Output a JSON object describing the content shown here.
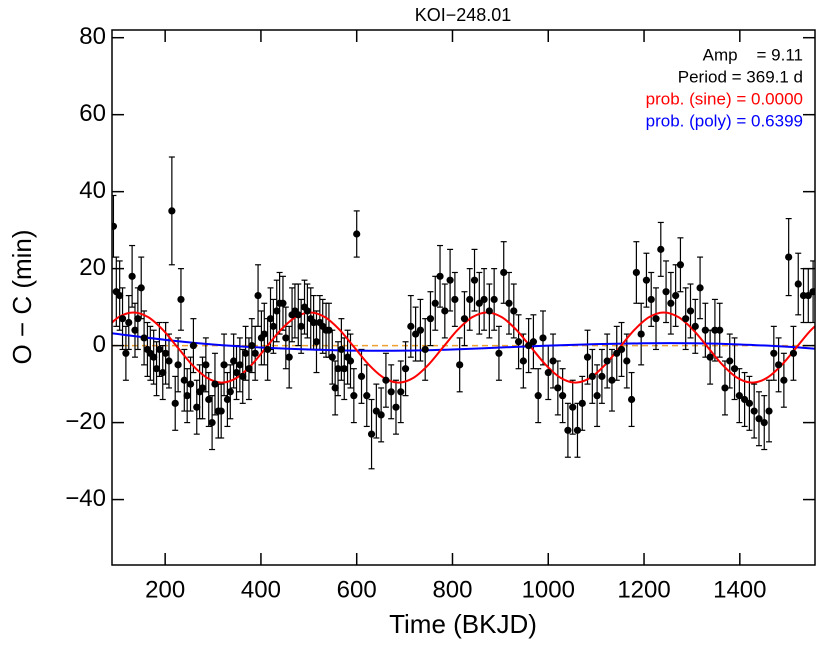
{
  "chart_data": {
    "type": "scatter",
    "title": "KOI−248.01",
    "x_label": "Time (BKJD)",
    "y_label": "O − C (min)",
    "xlim": [
      89,
      1557
    ],
    "ylim": [
      -57,
      82
    ],
    "xticks": [
      200,
      400,
      600,
      800,
      1000,
      1200,
      1400
    ],
    "yticks": [
      {
        "value": -40,
        "label": "−40"
      },
      {
        "value": -20,
        "label": "−20"
      },
      0,
      20,
      40,
      60,
      80
    ],
    "annotations": [
      {
        "text": "Amp    = 9.11",
        "color": "#000000"
      },
      {
        "text": "Period = 369.1 d",
        "color": "#000000"
      },
      {
        "text": "prob. (sine) = 0.0000",
        "color": "#ff0000"
      },
      {
        "text": "prob. (poly) = 0.6399",
        "color": "#0000ff"
      }
    ],
    "reference_line": {
      "value": 0,
      "color": "#f0a030",
      "dashed": true
    },
    "curves": [
      {
        "color": "#0000ff",
        "x": [
          89,
          200,
          300,
          400,
          500,
          600,
          700,
          800,
          900,
          1000,
          1100,
          1200,
          1300,
          1400,
          1500,
          1557
        ],
        "values": [
          3.2,
          1.5,
          0.3,
          -0.5,
          -1.0,
          -1.3,
          -1.3,
          -1.0,
          -0.5,
          0,
          0.4,
          0.6,
          0.6,
          0.3,
          -0.3,
          -0.8
        ]
      },
      {
        "color": "#ff0000",
        "x": [
          72.4,
          103.1,
          133.9,
          164.6,
          195.4,
          226.2,
          256.9,
          287.7,
          318.4,
          349.2,
          380.0,
          410.7,
          441.5,
          472.2,
          503.0,
          533.8,
          564.5,
          595.3,
          626.0,
          656.8,
          687.6,
          718.3,
          749.1,
          779.8,
          810.6,
          841.4,
          872.1,
          902.9,
          933.6,
          964.4,
          995.2,
          1025.9,
          1056.7,
          1087.4,
          1118.2,
          1149.0,
          1179.7,
          1210.5,
          1241.2,
          1272.0,
          1302.8,
          1333.5,
          1364.3,
          1395.0,
          1425.8,
          1456.6,
          1487.3,
          1518.1,
          1548.8,
          1579.6
        ],
        "values": [
          4.06,
          7.39,
          8.61,
          7.39,
          4.06,
          -0.5,
          -5.06,
          -8.39,
          -9.61,
          -8.39,
          -5.06,
          -0.5,
          4.06,
          7.39,
          8.61,
          7.39,
          4.06,
          -0.5,
          -5.06,
          -8.39,
          -9.61,
          -8.39,
          -5.06,
          -0.5,
          4.06,
          7.39,
          8.61,
          7.39,
          4.06,
          -0.5,
          -5.06,
          -8.39,
          -9.61,
          -8.39,
          -5.06,
          -0.5,
          4.06,
          7.39,
          8.61,
          7.39,
          4.06,
          -0.5,
          -5.06,
          -8.39,
          -9.61,
          -8.39,
          -5.06,
          -0.5,
          4.06,
          7.39
        ]
      }
    ],
    "points": {
      "color": "#000000",
      "x": [
        92,
        98,
        105,
        111,
        118,
        124,
        131,
        137,
        143,
        150,
        156,
        163,
        169,
        176,
        182,
        188,
        195,
        201,
        208,
        214,
        221,
        227,
        233,
        240,
        246,
        253,
        259,
        266,
        272,
        278,
        285,
        291,
        298,
        304,
        311,
        317,
        323,
        330,
        336,
        343,
        349,
        356,
        362,
        368,
        375,
        381,
        388,
        394,
        401,
        407,
        414,
        420,
        426,
        433,
        439,
        446,
        452,
        459,
        465,
        471,
        478,
        484,
        491,
        497,
        504,
        510,
        516,
        523,
        529,
        536,
        542,
        549,
        555,
        561,
        568,
        574,
        581,
        587,
        594,
        600,
        610,
        621,
        631,
        641,
        651,
        661,
        672,
        682,
        692,
        702,
        713,
        723,
        733,
        743,
        754,
        764,
        774,
        784,
        795,
        805,
        815,
        825,
        836,
        846,
        856,
        866,
        877,
        887,
        897,
        907,
        918,
        928,
        938,
        948,
        959,
        969,
        979,
        989,
        1000,
        1010,
        1020,
        1030,
        1041,
        1051,
        1061,
        1071,
        1082,
        1092,
        1102,
        1112,
        1123,
        1133,
        1143,
        1153,
        1164,
        1174,
        1184,
        1194,
        1205,
        1215,
        1225,
        1235,
        1246,
        1256,
        1266,
        1276,
        1287,
        1297,
        1307,
        1317,
        1328,
        1338,
        1348,
        1358,
        1369,
        1379,
        1389,
        1399,
        1410,
        1420,
        1430,
        1440,
        1451,
        1461,
        1471,
        1481,
        1492,
        1502,
        1512,
        1522,
        1533,
        1543,
        1553
      ],
      "values": [
        31,
        14,
        13,
        7,
        -2,
        6,
        18,
        4,
        7,
        15,
        2,
        -1,
        -2,
        -3,
        -6,
        -1,
        -7,
        -2,
        -4,
        35,
        -15,
        -5,
        12,
        -9,
        -13,
        -10,
        0,
        -16,
        -12,
        -11,
        -5,
        -14,
        -20,
        -10,
        -17,
        -17,
        -5,
        -14,
        -12,
        -4,
        -7,
        -5,
        -8,
        -2,
        -6,
        0,
        -2,
        13,
        2,
        3,
        -1,
        7,
        5,
        9,
        11,
        11,
        2,
        -3,
        8,
        9,
        8,
        5,
        10,
        9,
        7,
        6,
        1,
        6,
        5,
        4,
        4,
        -3,
        -11,
        -6,
        -1,
        -6,
        -3,
        -4,
        -13,
        29,
        -8,
        -13,
        -23,
        -17,
        -18,
        -9,
        -12,
        -16,
        -12,
        -6,
        5,
        3,
        4,
        -1,
        7,
        11,
        18,
        9,
        17,
        12,
        -5,
        7,
        12,
        17,
        11,
        12,
        9,
        12,
        -2,
        19,
        11,
        9,
        1,
        -4,
        0,
        1,
        -13,
        2,
        -7,
        -4,
        -11,
        -13,
        -22,
        -16,
        -22,
        -15,
        -3,
        -8,
        -13,
        -8,
        -4,
        -9,
        -2,
        -1,
        -4,
        -14,
        19,
        3,
        17,
        12,
        7,
        25,
        14,
        11,
        13,
        21,
        7,
        9,
        5,
        15,
        4,
        -3,
        4,
        4,
        -11,
        -4,
        -6,
        -13,
        -14,
        -15,
        -17,
        -19,
        -20,
        -17,
        -2,
        -5,
        -9,
        23,
        -2,
        16,
        13,
        13,
        14
      ],
      "errors": [
        8,
        9,
        9,
        8,
        7,
        7,
        8,
        7,
        8,
        8,
        7,
        7,
        7,
        7,
        7,
        7,
        7,
        8,
        7,
        14,
        7,
        7,
        8,
        8,
        7,
        7,
        7,
        7,
        7,
        8,
        7,
        7,
        7,
        8,
        7,
        7,
        8,
        7,
        7,
        7,
        7,
        7,
        7,
        7,
        8,
        7,
        7,
        8,
        7,
        8,
        8,
        8,
        7,
        8,
        8,
        7,
        8,
        8,
        7,
        7,
        8,
        7,
        7,
        7,
        8,
        7,
        8,
        7,
        7,
        7,
        7,
        7,
        7,
        7,
        8,
        8,
        7,
        7,
        7,
        6,
        7,
        8,
        9,
        7,
        7,
        7,
        7,
        7,
        8,
        7,
        8,
        7,
        8,
        8,
        7,
        7,
        8,
        7,
        8,
        7,
        7,
        7,
        8,
        8,
        8,
        8,
        7,
        8,
        7,
        8,
        8,
        7,
        7,
        7,
        7,
        7,
        7,
        7,
        7,
        7,
        7,
        7,
        7,
        7,
        7,
        7,
        7,
        7,
        8,
        7,
        7,
        8,
        7,
        7,
        7,
        7,
        8,
        8,
        7,
        7,
        8,
        7,
        8,
        8,
        8,
        7,
        8,
        7,
        7,
        8,
        7,
        7,
        8,
        7,
        7,
        7,
        8,
        7,
        7,
        7,
        7,
        7,
        7,
        8,
        7,
        7,
        7,
        10,
        7,
        8,
        7,
        7,
        8
      ]
    }
  }
}
